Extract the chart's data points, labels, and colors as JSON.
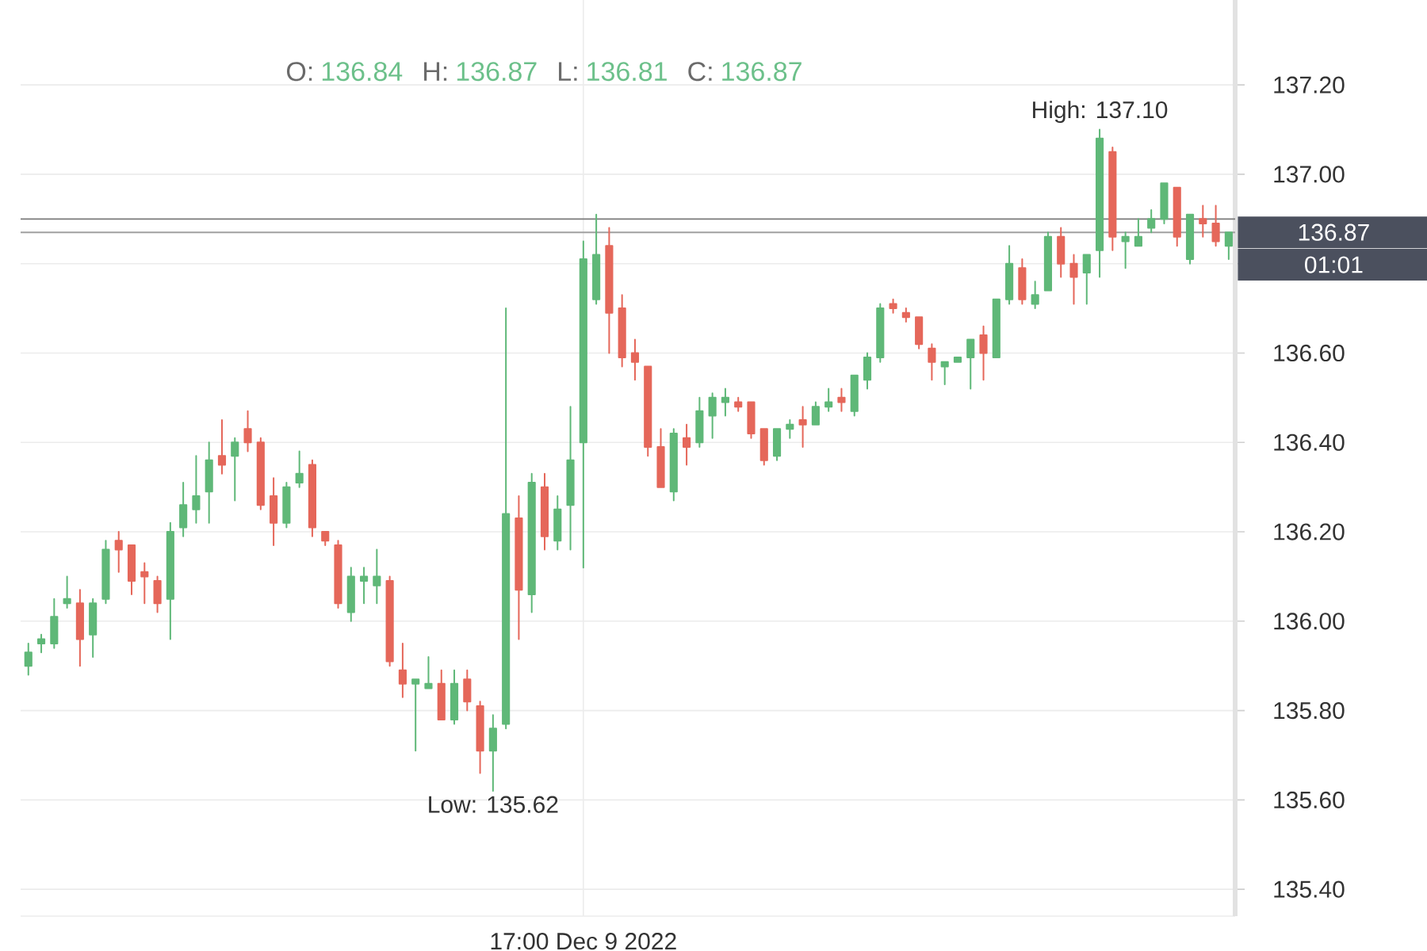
{
  "chart_data": {
    "type": "candlestick",
    "categories": [
      null,
      null,
      null,
      null,
      null,
      null,
      null,
      null,
      null,
      null,
      null,
      null,
      null,
      null,
      null,
      null,
      null,
      null,
      null,
      null,
      null,
      null,
      null,
      null,
      null,
      null,
      null,
      null,
      null,
      null,
      null,
      null,
      null,
      null,
      null,
      null,
      null,
      null,
      null,
      null,
      null,
      null,
      null,
      "17:00 Dec 9 2022",
      null,
      null,
      null,
      null,
      null,
      null,
      null,
      null,
      null,
      null,
      null,
      null,
      null,
      null,
      null,
      null,
      null,
      null,
      null,
      null,
      null,
      null,
      null,
      null,
      null,
      null,
      null,
      null,
      null,
      null,
      null,
      null,
      null,
      null,
      null,
      null,
      null,
      null,
      null,
      null,
      null,
      null,
      null,
      null,
      null,
      null,
      null,
      null,
      null,
      null
    ],
    "ohlc": [
      [
        135.9,
        135.95,
        135.88,
        135.93
      ],
      [
        135.95,
        135.97,
        135.93,
        135.96
      ],
      [
        135.95,
        136.05,
        135.94,
        136.01
      ],
      [
        136.04,
        136.1,
        136.03,
        136.05
      ],
      [
        136.04,
        136.07,
        135.9,
        135.96
      ],
      [
        135.97,
        136.05,
        135.92,
        136.04
      ],
      [
        136.05,
        136.18,
        136.04,
        136.16
      ],
      [
        136.18,
        136.2,
        136.11,
        136.16
      ],
      [
        136.17,
        136.17,
        136.06,
        136.09
      ],
      [
        136.11,
        136.13,
        136.04,
        136.1
      ],
      [
        136.09,
        136.1,
        136.02,
        136.04
      ],
      [
        136.05,
        136.22,
        135.96,
        136.2
      ],
      [
        136.21,
        136.31,
        136.19,
        136.26
      ],
      [
        136.25,
        136.37,
        136.22,
        136.28
      ],
      [
        136.29,
        136.4,
        136.22,
        136.36
      ],
      [
        136.37,
        136.45,
        136.33,
        136.35
      ],
      [
        136.37,
        136.41,
        136.27,
        136.4
      ],
      [
        136.43,
        136.47,
        136.38,
        136.4
      ],
      [
        136.4,
        136.41,
        136.25,
        136.26
      ],
      [
        136.28,
        136.32,
        136.17,
        136.22
      ],
      [
        136.22,
        136.31,
        136.21,
        136.3
      ],
      [
        136.31,
        136.38,
        136.3,
        136.33
      ],
      [
        136.35,
        136.36,
        136.19,
        136.21
      ],
      [
        136.2,
        136.2,
        136.17,
        136.18
      ],
      [
        136.17,
        136.18,
        136.03,
        136.04
      ],
      [
        136.02,
        136.12,
        136.0,
        136.1
      ],
      [
        136.09,
        136.12,
        136.04,
        136.1
      ],
      [
        136.08,
        136.16,
        136.04,
        136.1
      ],
      [
        136.09,
        136.1,
        135.9,
        135.91
      ],
      [
        135.89,
        135.95,
        135.83,
        135.86
      ],
      [
        135.86,
        135.87,
        135.71,
        135.87
      ],
      [
        135.85,
        135.92,
        135.85,
        135.86
      ],
      [
        135.86,
        135.89,
        135.78,
        135.78
      ],
      [
        135.78,
        135.89,
        135.77,
        135.86
      ],
      [
        135.87,
        135.89,
        135.8,
        135.82
      ],
      [
        135.81,
        135.82,
        135.66,
        135.71
      ],
      [
        135.71,
        135.79,
        135.62,
        135.76
      ],
      [
        135.77,
        136.7,
        135.76,
        136.24
      ],
      [
        136.23,
        136.28,
        135.96,
        136.07
      ],
      [
        136.06,
        136.33,
        136.02,
        136.31
      ],
      [
        136.3,
        136.33,
        136.16,
        136.19
      ],
      [
        136.18,
        136.28,
        136.16,
        136.25
      ],
      [
        136.26,
        136.48,
        136.16,
        136.36
      ],
      [
        136.4,
        136.85,
        136.12,
        136.81
      ],
      [
        136.72,
        136.91,
        136.71,
        136.82
      ],
      [
        136.84,
        136.88,
        136.6,
        136.69
      ],
      [
        136.7,
        136.73,
        136.57,
        136.59
      ],
      [
        136.6,
        136.63,
        136.54,
        136.58
      ],
      [
        136.57,
        136.57,
        136.37,
        136.39
      ],
      [
        136.39,
        136.43,
        136.3,
        136.3
      ],
      [
        136.29,
        136.43,
        136.27,
        136.42
      ],
      [
        136.41,
        136.44,
        136.35,
        136.39
      ],
      [
        136.4,
        136.5,
        136.39,
        136.47
      ],
      [
        136.46,
        136.51,
        136.41,
        136.5
      ],
      [
        136.49,
        136.52,
        136.46,
        136.5
      ],
      [
        136.49,
        136.5,
        136.47,
        136.48
      ],
      [
        136.49,
        136.49,
        136.41,
        136.42
      ],
      [
        136.43,
        136.43,
        136.35,
        136.36
      ],
      [
        136.37,
        136.43,
        136.36,
        136.43
      ],
      [
        136.43,
        136.45,
        136.41,
        136.44
      ],
      [
        136.45,
        136.48,
        136.39,
        136.44
      ],
      [
        136.44,
        136.49,
        136.44,
        136.48
      ],
      [
        136.48,
        136.52,
        136.47,
        136.49
      ],
      [
        136.5,
        136.52,
        136.47,
        136.49
      ],
      [
        136.47,
        136.55,
        136.46,
        136.55
      ],
      [
        136.54,
        136.6,
        136.52,
        136.59
      ],
      [
        136.59,
        136.71,
        136.58,
        136.7
      ],
      [
        136.71,
        136.72,
        136.69,
        136.7
      ],
      [
        136.69,
        136.7,
        136.67,
        136.68
      ],
      [
        136.68,
        136.68,
        136.61,
        136.62
      ],
      [
        136.61,
        136.62,
        136.54,
        136.58
      ],
      [
        136.57,
        136.58,
        136.53,
        136.58
      ],
      [
        136.58,
        136.59,
        136.58,
        136.59
      ],
      [
        136.59,
        136.63,
        136.52,
        136.63
      ],
      [
        136.64,
        136.66,
        136.54,
        136.6
      ],
      [
        136.59,
        136.72,
        136.59,
        136.72
      ],
      [
        136.72,
        136.84,
        136.71,
        136.8
      ],
      [
        136.79,
        136.81,
        136.71,
        136.72
      ],
      [
        136.71,
        136.76,
        136.7,
        136.73
      ],
      [
        136.74,
        136.87,
        136.74,
        136.86
      ],
      [
        136.86,
        136.88,
        136.77,
        136.8
      ],
      [
        136.8,
        136.82,
        136.71,
        136.77
      ],
      [
        136.78,
        136.82,
        136.71,
        136.82
      ],
      [
        136.83,
        137.1,
        136.77,
        137.08
      ],
      [
        137.05,
        137.06,
        136.83,
        136.86
      ],
      [
        136.85,
        136.87,
        136.79,
        136.86
      ],
      [
        136.84,
        136.9,
        136.84,
        136.86
      ],
      [
        136.88,
        136.92,
        136.87,
        136.9
      ],
      [
        136.9,
        136.98,
        136.89,
        136.98
      ],
      [
        136.97,
        136.97,
        136.84,
        136.86
      ],
      [
        136.81,
        136.91,
        136.8,
        136.91
      ],
      [
        136.9,
        136.93,
        136.86,
        136.89
      ],
      [
        136.89,
        136.93,
        136.84,
        136.85
      ],
      [
        136.84,
        136.87,
        136.81,
        136.87
      ]
    ],
    "colors": [
      "#5fb878",
      "#5fb878",
      "#5fb878",
      "#5fb878",
      "#e5675a",
      "#5fb878",
      "#5fb878",
      "#e5675a",
      "#e5675a",
      "#e5675a",
      "#e5675a",
      "#5fb878",
      "#5fb878",
      "#5fb878",
      "#5fb878",
      "#e5675a",
      "#5fb878",
      "#e5675a",
      "#e5675a",
      "#e5675a",
      "#5fb878",
      "#5fb878",
      "#e5675a",
      "#e5675a",
      "#e5675a",
      "#5fb878",
      "#5fb878",
      "#5fb878",
      "#e5675a",
      "#e5675a",
      "#5fb878",
      "#5fb878",
      "#e5675a",
      "#5fb878",
      "#e5675a",
      "#e5675a",
      "#5fb878",
      "#5fb878",
      "#e5675a",
      "#5fb878",
      "#e5675a",
      "#5fb878",
      "#5fb878",
      "#5fb878",
      "#5fb878",
      "#e5675a",
      "#e5675a",
      "#e5675a",
      "#e5675a",
      "#e5675a",
      "#5fb878",
      "#e5675a",
      "#5fb878",
      "#5fb878",
      "#5fb878",
      "#e5675a",
      "#e5675a",
      "#e5675a",
      "#5fb878",
      "#5fb878",
      "#e5675a",
      "#5fb878",
      "#5fb878",
      "#e5675a",
      "#5fb878",
      "#5fb878",
      "#5fb878",
      "#e5675a",
      "#e5675a",
      "#e5675a",
      "#e5675a",
      "#5fb878",
      "#5fb878",
      "#5fb878",
      "#e5675a",
      "#5fb878",
      "#5fb878",
      "#e5675a",
      "#5fb878",
      "#5fb878",
      "#e5675a",
      "#e5675a",
      "#5fb878",
      "#5fb878",
      "#e5675a",
      "#5fb878",
      "#5fb878",
      "#5fb878",
      "#5fb878",
      "#e5675a",
      "#5fb878",
      "#e5675a",
      "#e5675a",
      "#5fb878"
    ],
    "ylim": [
      135.34,
      137.39
    ],
    "yticks": [
      {
        "value": 135.4,
        "label": "135.40"
      },
      {
        "value": 135.6,
        "label": "135.60"
      },
      {
        "value": 135.8,
        "label": "135.80"
      },
      {
        "value": 136.0,
        "label": "136.00"
      },
      {
        "value": 136.2,
        "label": "136.20"
      },
      {
        "value": 136.4,
        "label": "136.40"
      },
      {
        "value": 136.6,
        "label": "136.60"
      },
      {
        "value": 136.8,
        "label": null
      },
      {
        "value": 137.0,
        "label": "137.00"
      },
      {
        "value": 137.2,
        "label": "137.20"
      }
    ],
    "grid": true,
    "ref_lines": [
      {
        "axis": "y",
        "value": 136.9,
        "color": "#7a7a7a"
      },
      {
        "axis": "y",
        "value": 136.87,
        "label": "136.87",
        "color": "#a0a0a0"
      }
    ],
    "annotations": [
      "O:",
      "136.84",
      "H:",
      "136.87",
      "L:",
      "136.81",
      "C:",
      "136.87",
      {
        "text": "High: 137.10",
        "y": 137.1
      },
      {
        "text": "Low: 135.62",
        "y": 135.62
      },
      "01:01"
    ]
  }
}
